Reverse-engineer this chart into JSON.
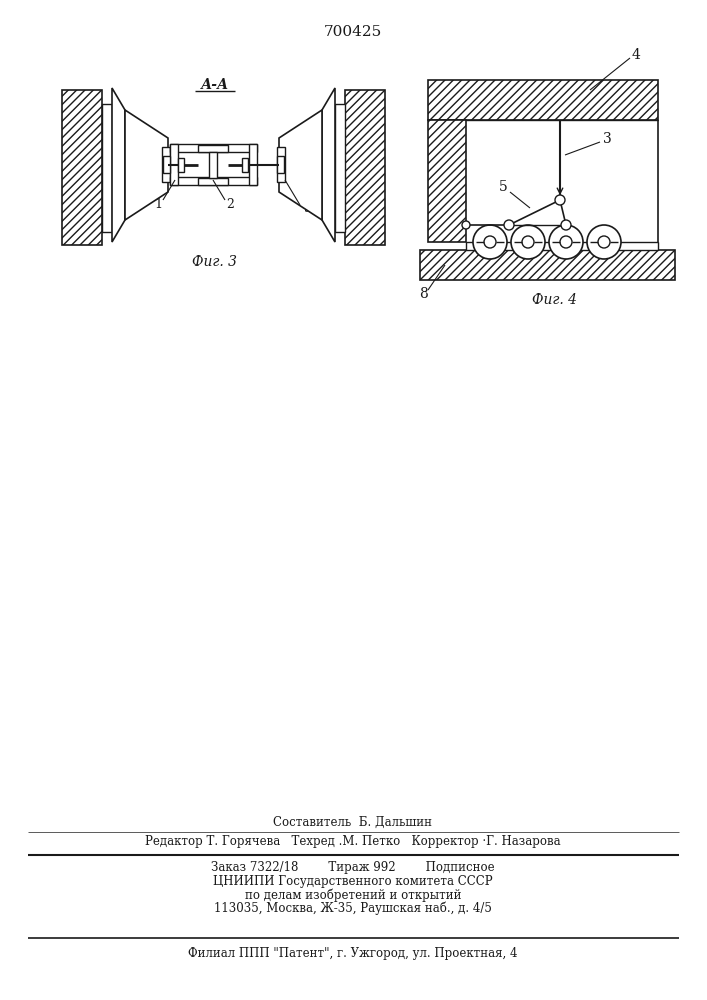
{
  "title": "700425",
  "bg_color": "#ffffff",
  "line_color": "#1a1a1a",
  "fig3_caption": "Фиг. 3",
  "fig4_caption": "Фиг. 4",
  "footer_line1": "Составитель  Б. Дальшин",
  "footer_line2": "Редактор Т. Горячева   Техред .M. Петко   Корректор ·Г. Назарова",
  "footer_line3": "Заказ 7322/18        Тираж 992        Подписное",
  "footer_line4": "ЦНИИПИ Государственного комитета СССР",
  "footer_line5": "по делам изобретений и открытий",
  "footer_line6": "113035, Москва, Ж-35, Раушская наб., д. 4/5",
  "footer_line7": "Филиал ППП \"Патент\", г. Ужгород, ул. Проектная, 4"
}
